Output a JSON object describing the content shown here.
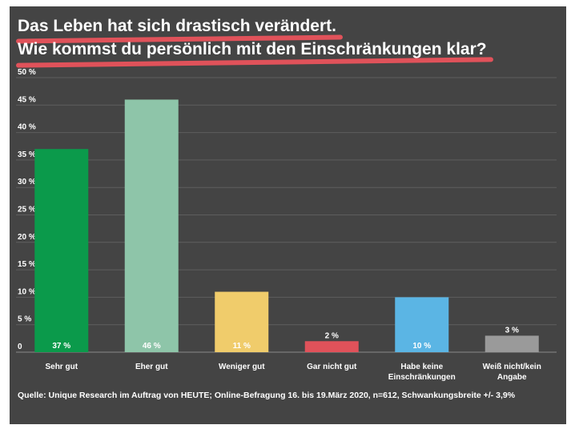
{
  "header": {
    "title_line1": "Das Leben hat sich drastisch verändert.",
    "title_line2": "Wie kommst du persönlich mit den Einschränkungen klar?"
  },
  "chart_data": {
    "type": "bar",
    "categories": [
      "Sehr gut",
      "Eher gut",
      "Weniger gut",
      "Gar nicht gut",
      "Habe keine Einschränkungen",
      "Weiß nicht/kein Angabe"
    ],
    "category_lines": [
      [
        "Sehr gut"
      ],
      [
        "Eher gut"
      ],
      [
        "Weniger gut"
      ],
      [
        "Gar nicht gut"
      ],
      [
        "Habe keine",
        "Einschränkungen"
      ],
      [
        "Weiß nicht/kein",
        "Angabe"
      ]
    ],
    "values": [
      37,
      46,
      11,
      2,
      10,
      3
    ],
    "value_labels": [
      "37 %",
      "46 %",
      "11 %",
      "2 %",
      "10 %",
      "3 %"
    ],
    "colors": [
      "#0b9a4b",
      "#8ec5a9",
      "#f0cc6b",
      "#e0525a",
      "#5bb5e4",
      "#9a9a9a"
    ],
    "yticks": [
      0,
      5,
      10,
      15,
      20,
      25,
      30,
      35,
      40,
      45,
      50
    ],
    "ytick_labels": [
      "0",
      "5 %",
      "10 %",
      "15 %",
      "20 %",
      "25 %",
      "30 %",
      "35 %",
      "40 %",
      "45 %",
      "50 %"
    ],
    "ylim": [
      0,
      50
    ],
    "grid": true,
    "title": "Das Leben hat sich drastisch verändert. Wie kommst du persönlich mit den Einschränkungen klar?",
    "xlabel": "",
    "ylabel": ""
  },
  "footer": {
    "source": "Quelle: Unique Research im Auftrag von HEUTE; Online-Befragung 16. bis 19.März 2020, n=612, Schwankungsbreite +/- 3,9%"
  },
  "colors": {
    "background": "#444444",
    "text": "#ffffff",
    "accent": "#e0525a",
    "grid": "#5e5e5e"
  }
}
